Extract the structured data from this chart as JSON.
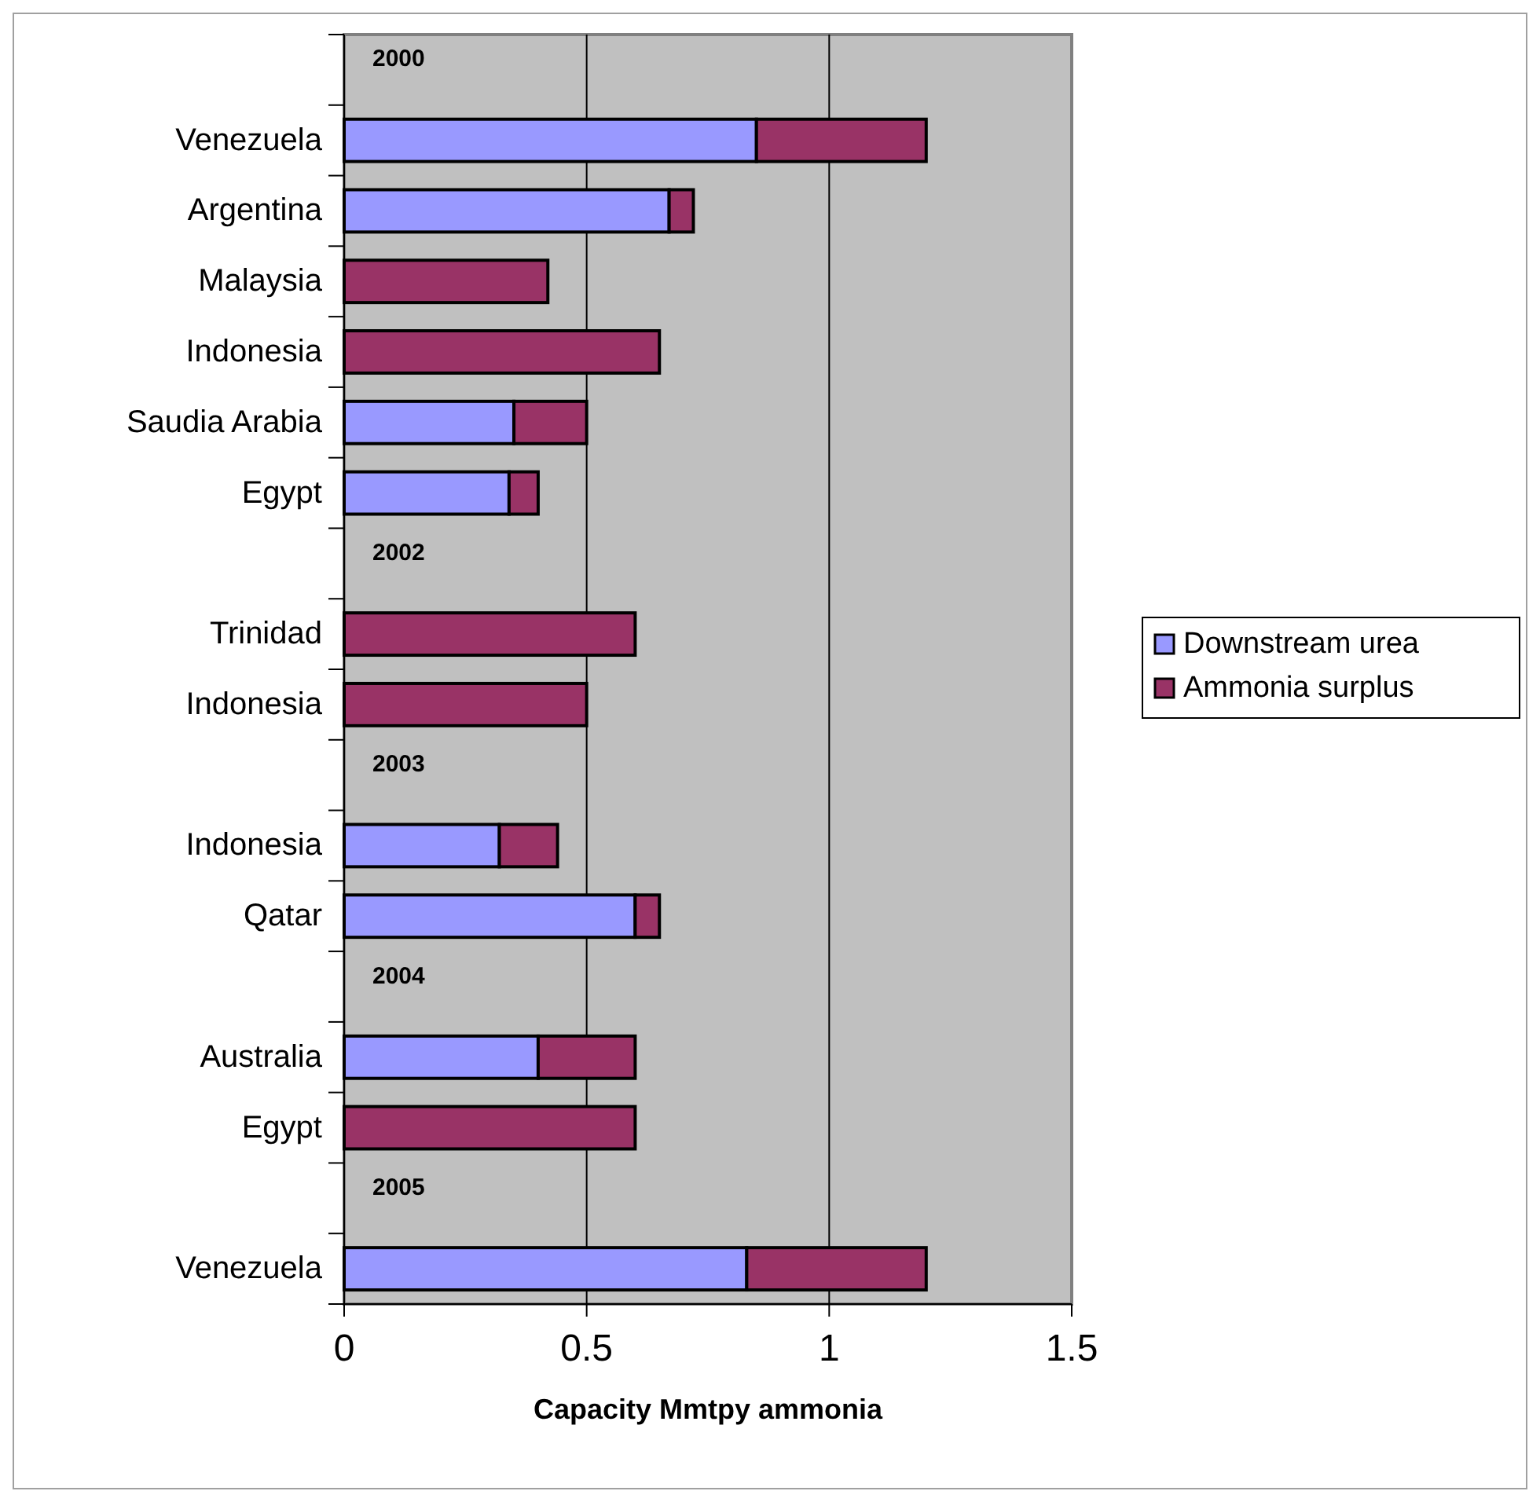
{
  "chart_data": {
    "type": "bar",
    "orientation": "horizontal",
    "stacked": true,
    "xlabel": "Capacity Mmtpy ammonia",
    "categories": [
      null,
      "Venezuela",
      "Argentina",
      "Malaysia",
      "Indonesia",
      "Saudia Arabia",
      "Egypt",
      null,
      "Trinidad",
      "Indonesia",
      null,
      "Indonesia",
      "Qatar",
      null,
      "Australia",
      "Egypt",
      null,
      "Venezuela"
    ],
    "series": [
      {
        "name": "Downstream urea",
        "color": "#9999ff",
        "values": [
          null,
          0.85,
          0.67,
          null,
          null,
          0.35,
          0.34,
          null,
          null,
          null,
          null,
          0.32,
          0.6,
          null,
          0.4,
          null,
          null,
          0.83
        ]
      },
      {
        "name": "Ammonia surplus",
        "color": "#993366",
        "values": [
          null,
          0.35,
          0.05,
          0.42,
          0.65,
          0.15,
          0.06,
          null,
          0.6,
          0.5,
          null,
          0.12,
          0.05,
          null,
          0.2,
          0.6,
          null,
          0.37
        ]
      }
    ],
    "annotations": [
      "2000",
      "2002",
      "2003",
      "2004",
      "2005"
    ],
    "xlim": [
      0,
      1.5
    ],
    "xticks": [
      0,
      0.5,
      1,
      1.5
    ],
    "grid": "x",
    "legend": "right"
  }
}
